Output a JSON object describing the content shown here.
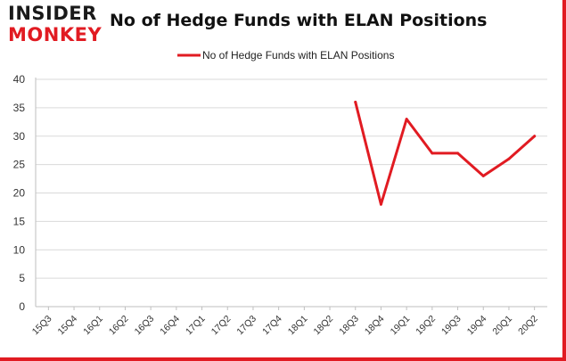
{
  "brand": {
    "line1": "INSIDER",
    "line2": "MONKEY",
    "accent": "#e11b22"
  },
  "chart_data": {
    "type": "line",
    "title": "No of Hedge Funds with ELAN Positions",
    "xlabel": "",
    "ylabel": "",
    "categories": [
      "15Q3",
      "15Q4",
      "16Q1",
      "16Q2",
      "16Q3",
      "16Q4",
      "17Q1",
      "17Q2",
      "17Q3",
      "17Q4",
      "18Q1",
      "18Q2",
      "18Q3",
      "18Q4",
      "19Q1",
      "19Q2",
      "19Q3",
      "19Q4",
      "20Q1",
      "20Q2"
    ],
    "ylim": [
      0,
      40
    ],
    "yticks": [
      0,
      5,
      10,
      15,
      20,
      25,
      30,
      35,
      40
    ],
    "grid": "horizontal",
    "legend": "top-center",
    "series": [
      {
        "name": "No of Hedge Funds with ELAN Positions",
        "color": "#e11b22",
        "values": [
          null,
          null,
          null,
          null,
          null,
          null,
          null,
          null,
          null,
          null,
          null,
          null,
          36,
          18,
          33,
          27,
          27,
          23,
          26,
          30
        ]
      }
    ]
  }
}
